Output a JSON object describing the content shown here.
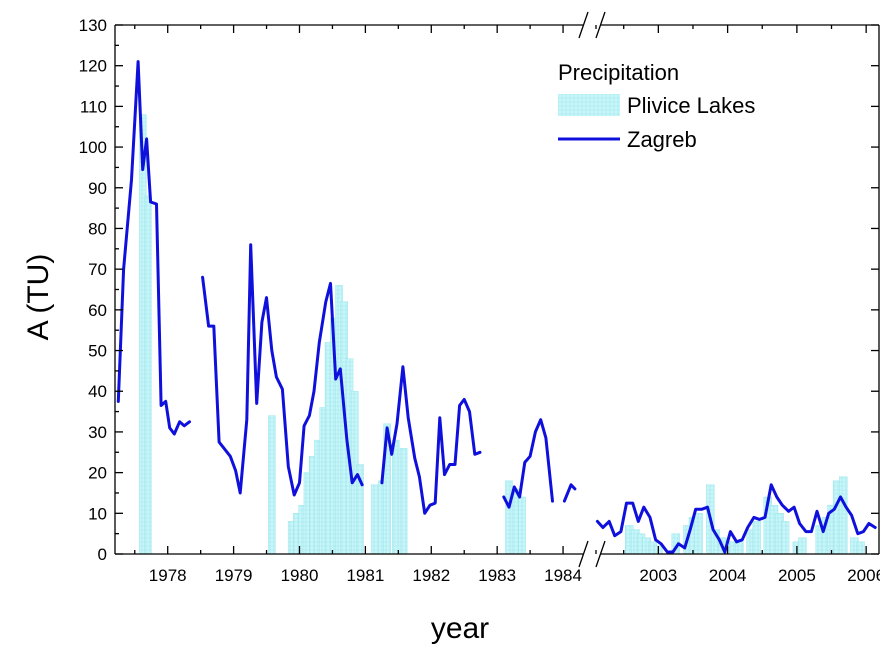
{
  "chart_data": {
    "type": "bar+line",
    "title": "",
    "xlabel": "year",
    "ylabel": "A (TU)",
    "ylim": [
      0,
      130
    ],
    "y_ticks": [
      0,
      10,
      20,
      30,
      40,
      50,
      60,
      70,
      80,
      90,
      100,
      110,
      120,
      130
    ],
    "x_axis_broken": true,
    "x_segments": [
      {
        "range": [
          1977.7,
          1985.0
        ],
        "ticks": [
          1978,
          1979,
          1980,
          1981,
          1982,
          1983,
          1984
        ]
      },
      {
        "range": [
          2002.6,
          2006.7
        ],
        "ticks": [
          2003,
          2004,
          2005,
          2006
        ]
      }
    ],
    "legend": {
      "title": "Precipitation",
      "entries": [
        "Plivice Lakes",
        "Zagreb"
      ],
      "position": "top-right"
    },
    "colors": {
      "bars": "#bff3f5",
      "bars_edge": "#93e5ec",
      "line": "#1010dd"
    },
    "series": [
      {
        "name": "Plivice Lakes",
        "kind": "bar",
        "points": [
          {
            "x": 1978.12,
            "y": 108
          },
          {
            "x": 1978.2,
            "y": 88
          },
          {
            "x": 1980.08,
            "y": 34
          },
          {
            "x": 1980.38,
            "y": 8
          },
          {
            "x": 1980.46,
            "y": 10
          },
          {
            "x": 1980.54,
            "y": 12
          },
          {
            "x": 1980.62,
            "y": 20
          },
          {
            "x": 1980.7,
            "y": 24
          },
          {
            "x": 1980.78,
            "y": 28
          },
          {
            "x": 1980.86,
            "y": 36
          },
          {
            "x": 1980.94,
            "y": 52
          },
          {
            "x": 1981.02,
            "y": 58
          },
          {
            "x": 1981.1,
            "y": 66
          },
          {
            "x": 1981.18,
            "y": 62
          },
          {
            "x": 1981.26,
            "y": 48
          },
          {
            "x": 1981.34,
            "y": 40
          },
          {
            "x": 1981.42,
            "y": 22
          },
          {
            "x": 1981.64,
            "y": 17
          },
          {
            "x": 1981.75,
            "y": 18
          },
          {
            "x": 1981.83,
            "y": 32
          },
          {
            "x": 1981.96,
            "y": 28
          },
          {
            "x": 1982.08,
            "y": 26
          },
          {
            "x": 1983.68,
            "y": 18
          },
          {
            "x": 1983.78,
            "y": 16
          },
          {
            "x": 1983.88,
            "y": 14
          },
          {
            "x": 2003.08,
            "y": 7
          },
          {
            "x": 2003.17,
            "y": 6
          },
          {
            "x": 2003.25,
            "y": 5
          },
          {
            "x": 2003.33,
            "y": 4
          },
          {
            "x": 2003.42,
            "y": 3
          },
          {
            "x": 2003.5,
            "y": 2
          },
          {
            "x": 2003.75,
            "y": 5
          },
          {
            "x": 2003.92,
            "y": 7
          },
          {
            "x": 2004.0,
            "y": 9
          },
          {
            "x": 2004.08,
            "y": 10
          },
          {
            "x": 2004.25,
            "y": 17
          },
          {
            "x": 2004.33,
            "y": 6
          },
          {
            "x": 2004.42,
            "y": 4
          },
          {
            "x": 2004.5,
            "y": 3
          },
          {
            "x": 2004.58,
            "y": 3
          },
          {
            "x": 2004.67,
            "y": 3
          },
          {
            "x": 2004.83,
            "y": 6
          },
          {
            "x": 2004.92,
            "y": 8
          },
          {
            "x": 2005.08,
            "y": 14
          },
          {
            "x": 2005.17,
            "y": 12
          },
          {
            "x": 2005.25,
            "y": 10
          },
          {
            "x": 2005.33,
            "y": 8
          },
          {
            "x": 2005.5,
            "y": 3
          },
          {
            "x": 2005.58,
            "y": 4
          },
          {
            "x": 2005.83,
            "y": 7
          },
          {
            "x": 2005.92,
            "y": 9
          },
          {
            "x": 2006.0,
            "y": 12
          },
          {
            "x": 2006.08,
            "y": 18
          },
          {
            "x": 2006.17,
            "y": 19
          },
          {
            "x": 2006.33,
            "y": 4
          },
          {
            "x": 2006.42,
            "y": 3
          }
        ]
      },
      {
        "name": "Zagreb",
        "kind": "line",
        "segments": [
          [
            [
              1977.75,
              37.5
            ],
            [
              1977.83,
              70
            ],
            [
              1977.95,
              92
            ],
            [
              1978.05,
              121
            ],
            [
              1978.12,
              94.5
            ],
            [
              1978.18,
              102
            ],
            [
              1978.24,
              86.5
            ],
            [
              1978.33,
              86
            ],
            [
              1978.4,
              36.5
            ],
            [
              1978.47,
              37.5
            ],
            [
              1978.53,
              31
            ],
            [
              1978.6,
              29.5
            ],
            [
              1978.68,
              32.5
            ],
            [
              1978.75,
              31.5
            ],
            [
              1978.83,
              32.5
            ]
          ],
          [
            [
              1979.03,
              68
            ],
            [
              1979.12,
              56
            ],
            [
              1979.2,
              56
            ],
            [
              1979.28,
              27.5
            ],
            [
              1979.45,
              24
            ],
            [
              1979.53,
              20.5
            ],
            [
              1979.6,
              15
            ],
            [
              1979.7,
              33
            ],
            [
              1979.76,
              76
            ],
            [
              1979.85,
              37
            ],
            [
              1979.93,
              57
            ],
            [
              1980.0,
              63
            ],
            [
              1980.08,
              50
            ],
            [
              1980.15,
              43.5
            ],
            [
              1980.24,
              40.5
            ],
            [
              1980.33,
              21.5
            ],
            [
              1980.42,
              14.5
            ],
            [
              1980.5,
              17.5
            ],
            [
              1980.57,
              31.5
            ],
            [
              1980.65,
              34
            ],
            [
              1980.72,
              40
            ],
            [
              1980.8,
              52
            ],
            [
              1980.9,
              62
            ],
            [
              1980.97,
              66.5
            ],
            [
              1981.05,
              43
            ],
            [
              1981.12,
              45.5
            ],
            [
              1981.22,
              28
            ],
            [
              1981.3,
              17.5
            ],
            [
              1981.38,
              19.5
            ],
            [
              1981.45,
              17
            ]
          ],
          [
            [
              1981.75,
              17.5
            ],
            [
              1981.83,
              31
            ],
            [
              1981.9,
              24.5
            ],
            [
              1981.98,
              32
            ],
            [
              1982.07,
              46
            ],
            [
              1982.15,
              33.5
            ],
            [
              1982.25,
              23.5
            ],
            [
              1982.32,
              19
            ],
            [
              1982.4,
              10
            ],
            [
              1982.48,
              12
            ],
            [
              1982.56,
              12.5
            ],
            [
              1982.63,
              33.5
            ],
            [
              1982.7,
              19.5
            ],
            [
              1982.78,
              22
            ],
            [
              1982.86,
              22
            ],
            [
              1982.93,
              36.5
            ],
            [
              1983.0,
              38
            ],
            [
              1983.08,
              35
            ],
            [
              1983.16,
              24.5
            ],
            [
              1983.24,
              25
            ]
          ],
          [
            [
              1983.6,
              14
            ],
            [
              1983.68,
              11.5
            ],
            [
              1983.76,
              16.5
            ],
            [
              1983.84,
              14
            ],
            [
              1983.92,
              22.5
            ],
            [
              1984.0,
              24
            ],
            [
              1984.08,
              30
            ],
            [
              1984.16,
              33
            ],
            [
              1984.24,
              28.5
            ],
            [
              1984.34,
              13
            ]
          ],
          [
            [
              1984.52,
              13
            ],
            [
              1984.62,
              17
            ],
            [
              1984.68,
              16
            ]
          ],
          [
            [
              2002.62,
              8
            ],
            [
              2002.7,
              6.5
            ],
            [
              2002.79,
              8
            ],
            [
              2002.87,
              4.5
            ],
            [
              2002.96,
              5.5
            ],
            [
              2003.04,
              12.5
            ],
            [
              2003.13,
              12.5
            ],
            [
              2003.21,
              8
            ],
            [
              2003.29,
              11.5
            ],
            [
              2003.38,
              9
            ],
            [
              2003.46,
              3.5
            ],
            [
              2003.54,
              2.5
            ],
            [
              2003.63,
              0.5
            ],
            [
              2003.71,
              0.5
            ],
            [
              2003.79,
              2.5
            ],
            [
              2003.88,
              1.5
            ],
            [
              2003.96,
              6
            ],
            [
              2004.04,
              11
            ],
            [
              2004.13,
              11
            ],
            [
              2004.21,
              11.5
            ],
            [
              2004.29,
              6
            ],
            [
              2004.38,
              3.5
            ],
            [
              2004.46,
              0.5
            ],
            [
              2004.54,
              5.5
            ],
            [
              2004.63,
              3
            ],
            [
              2004.71,
              3.5
            ],
            [
              2004.79,
              6.5
            ],
            [
              2004.88,
              9
            ],
            [
              2004.96,
              8.5
            ],
            [
              2005.04,
              9
            ],
            [
              2005.13,
              17
            ],
            [
              2005.21,
              14
            ],
            [
              2005.29,
              12
            ],
            [
              2005.38,
              10.5
            ],
            [
              2005.46,
              11.5
            ],
            [
              2005.54,
              7.5
            ],
            [
              2005.63,
              5.5
            ],
            [
              2005.71,
              5.5
            ],
            [
              2005.79,
              10.5
            ],
            [
              2005.88,
              5.5
            ],
            [
              2005.96,
              10
            ],
            [
              2006.04,
              11
            ],
            [
              2006.13,
              14
            ],
            [
              2006.21,
              11.5
            ],
            [
              2006.29,
              9.5
            ],
            [
              2006.38,
              5
            ],
            [
              2006.46,
              5.5
            ],
            [
              2006.54,
              7.5
            ],
            [
              2006.63,
              6.5
            ]
          ]
        ]
      }
    ]
  }
}
